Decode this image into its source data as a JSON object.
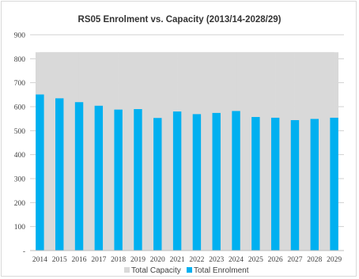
{
  "chart_data": {
    "type": "bar",
    "title": "RS05 Enrolment vs. Capacity (2013/14-2028/29)",
    "xlabel": "",
    "ylabel": "",
    "ylim": [
      0,
      900
    ],
    "y_ticks": [
      "-",
      "100",
      "200",
      "300",
      "400",
      "500",
      "600",
      "700",
      "800",
      "900"
    ],
    "y_tick_values": [
      0,
      100,
      200,
      300,
      400,
      500,
      600,
      700,
      800,
      900
    ],
    "categories": [
      "2014",
      "2015",
      "2016",
      "2017",
      "2018",
      "2019",
      "2020",
      "2021",
      "2022",
      "2023",
      "2024",
      "2025",
      "2026",
      "2027",
      "2028",
      "2029"
    ],
    "series": [
      {
        "name": "Total Capacity",
        "type": "area",
        "color": "#d9d9d9",
        "values": [
          827,
          827,
          827,
          827,
          827,
          827,
          827,
          827,
          827,
          827,
          827,
          827,
          827,
          827,
          827,
          827
        ]
      },
      {
        "name": "Total Enrolment",
        "type": "bar",
        "color": "#00b0f0",
        "values": [
          651,
          635,
          619,
          604,
          588,
          590,
          553,
          580,
          569,
          574,
          582,
          557,
          554,
          544,
          549,
          554
        ]
      }
    ],
    "grid": true,
    "legend": "bottom"
  }
}
